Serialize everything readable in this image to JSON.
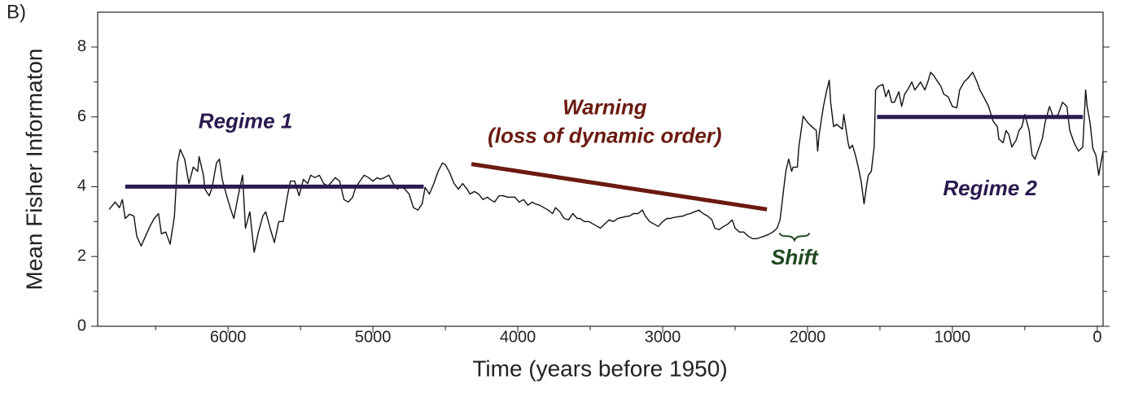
{
  "chart_data": {
    "type": "line",
    "panel_label": "B)",
    "xlabel": "Time (years before 1950)",
    "ylabel": "Mean Fisher Informaton",
    "xlim": [
      6900,
      -40
    ],
    "ylim": [
      0,
      9
    ],
    "xticks": [
      6000,
      5000,
      4000,
      3000,
      2000,
      1000,
      0
    ],
    "xminor": [
      6500,
      5500,
      4500,
      3500,
      2500,
      1500,
      500
    ],
    "yticks": [
      0,
      2,
      4,
      6,
      8
    ],
    "yminor": [
      1,
      3,
      5,
      7
    ],
    "series": [
      {
        "name": "Mean Fisher Information",
        "color": "#111111",
        "x": [
          6820,
          6780,
          6750,
          6730,
          6710,
          6680,
          6650,
          6630,
          6600,
          6570,
          6540,
          6510,
          6480,
          6460,
          6430,
          6400,
          6370,
          6350,
          6330,
          6300,
          6270,
          6240,
          6210,
          6200,
          6170,
          6160,
          6130,
          6110,
          6080,
          6060,
          6040,
          6010,
          5980,
          5960,
          5930,
          5900,
          5880,
          5850,
          5820,
          5790,
          5760,
          5740,
          5710,
          5680,
          5650,
          5620,
          5590,
          5570,
          5540,
          5510,
          5480,
          5450,
          5430,
          5400,
          5370,
          5340,
          5310,
          5280,
          5260,
          5230,
          5200,
          5170,
          5140,
          5120,
          5090,
          5060,
          5030,
          5000,
          4970,
          4950,
          4920,
          4890,
          4860,
          4830,
          4810,
          4780,
          4750,
          4720,
          4690,
          4660,
          4640,
          4610,
          4580,
          4550,
          4520,
          4500,
          4470,
          4440,
          4410,
          4380,
          4350,
          4330,
          4300,
          4270,
          4240,
          4210,
          4190,
          4160,
          4130,
          4100,
          4070,
          4050,
          4020,
          3990,
          3960,
          3930,
          3900,
          3880,
          3850,
          3820,
          3790,
          3760,
          3740,
          3710,
          3680,
          3650,
          3620,
          3590,
          3570,
          3540,
          3510,
          3480,
          3450,
          3430,
          3400,
          3370,
          3340,
          3310,
          3280,
          3260,
          3230,
          3200,
          3170,
          3140,
          3120,
          3090,
          3060,
          3030,
          3000,
          2970,
          2950,
          2920,
          2890,
          2860,
          2830,
          2810,
          2780,
          2750,
          2720,
          2690,
          2660,
          2640,
          2610,
          2580,
          2550,
          2520,
          2500,
          2470,
          2440,
          2410,
          2380,
          2350,
          2330,
          2300,
          2270,
          2240,
          2210,
          2190,
          2170,
          2150,
          2130,
          2110,
          2100,
          2070,
          2060,
          2030,
          2000,
          1970,
          1940,
          1930,
          1920,
          1890,
          1870,
          1850,
          1840,
          1820,
          1800,
          1780,
          1760,
          1750,
          1720,
          1710,
          1690,
          1670,
          1650,
          1630,
          1610,
          1590,
          1580,
          1560,
          1540,
          1530,
          1510,
          1480,
          1460,
          1440,
          1420,
          1400,
          1370,
          1350,
          1330,
          1310,
          1280,
          1260,
          1240,
          1220,
          1190,
          1170,
          1150,
          1130,
          1100,
          1080,
          1060,
          1030,
          1000,
          970,
          950,
          920,
          890,
          860,
          830,
          810,
          780,
          750,
          720,
          690,
          680,
          650,
          630,
          610,
          590,
          560,
          540,
          520,
          500,
          470,
          450,
          430,
          410,
          380,
          360,
          330,
          300,
          270,
          240,
          210,
          190,
          160,
          130,
          100,
          80,
          70,
          50,
          30,
          10,
          -10,
          -40
        ],
        "values": [
          3.35,
          3.56,
          3.4,
          3.63,
          3.09,
          3.21,
          3.16,
          2.58,
          2.3,
          2.58,
          2.86,
          3.09,
          3.23,
          2.65,
          2.7,
          2.35,
          3.16,
          4.68,
          5.07,
          4.79,
          4.09,
          4.56,
          4.44,
          4.86,
          4.33,
          3.93,
          3.74,
          3.98,
          4.68,
          4.79,
          4.21,
          3.74,
          3.33,
          3.09,
          3.74,
          4.33,
          2.81,
          3.28,
          2.12,
          2.7,
          3.16,
          3.28,
          2.81,
          2.4,
          3.0,
          3.0,
          3.74,
          4.16,
          4.16,
          3.74,
          4.21,
          4.09,
          4.33,
          4.26,
          4.33,
          4.09,
          4.02,
          4.16,
          4.26,
          4.16,
          3.63,
          3.56,
          3.7,
          3.98,
          4.16,
          4.33,
          4.26,
          4.16,
          4.26,
          4.21,
          4.26,
          4.33,
          4.09,
          3.93,
          4.02,
          3.93,
          3.79,
          3.4,
          3.33,
          3.51,
          3.98,
          3.79,
          4.09,
          4.44,
          4.68,
          4.63,
          4.4,
          4.09,
          3.93,
          4.09,
          3.93,
          3.79,
          3.86,
          3.79,
          3.63,
          3.7,
          3.63,
          3.56,
          3.74,
          3.74,
          3.7,
          3.7,
          3.7,
          3.56,
          3.63,
          3.47,
          3.56,
          3.51,
          3.47,
          3.4,
          3.33,
          3.23,
          3.4,
          3.28,
          3.09,
          3.05,
          3.23,
          3.09,
          3.09,
          3.0,
          3.0,
          2.93,
          2.86,
          2.81,
          2.93,
          3.05,
          3.0,
          3.09,
          3.12,
          3.14,
          3.16,
          3.23,
          3.23,
          3.33,
          3.16,
          3.0,
          2.93,
          2.86,
          3.0,
          3.09,
          3.09,
          3.12,
          3.14,
          3.16,
          3.21,
          3.23,
          3.28,
          3.33,
          3.23,
          3.16,
          3.05,
          2.81,
          2.77,
          2.86,
          2.93,
          3.05,
          2.81,
          2.7,
          2.7,
          2.58,
          2.51,
          2.51,
          2.54,
          2.58,
          2.63,
          2.7,
          2.81,
          3.05,
          3.74,
          4.44,
          4.79,
          4.44,
          4.56,
          4.56,
          5.14,
          6.02,
          5.84,
          5.72,
          5.61,
          5.02,
          5.49,
          6.3,
          6.72,
          7.05,
          6.42,
          5.72,
          5.79,
          5.72,
          5.65,
          6.07,
          5.26,
          5.09,
          5.19,
          4.91,
          4.56,
          4.16,
          3.51,
          4.09,
          4.33,
          4.44,
          5.14,
          6.77,
          6.88,
          6.93,
          6.58,
          6.77,
          6.42,
          6.42,
          6.72,
          6.3,
          6.65,
          6.77,
          7.0,
          6.77,
          6.88,
          7.0,
          6.77,
          7.0,
          7.28,
          7.19,
          7.0,
          6.88,
          6.65,
          6.58,
          6.3,
          6.26,
          6.77,
          7.0,
          7.12,
          7.28,
          7.0,
          6.77,
          6.54,
          6.3,
          5.88,
          5.72,
          5.37,
          5.26,
          5.61,
          5.49,
          5.14,
          5.33,
          5.61,
          5.72,
          6.07,
          5.61,
          4.91,
          4.79,
          5.02,
          5.37,
          5.84,
          6.3,
          5.95,
          6.07,
          6.42,
          6.3,
          5.61,
          5.26,
          5.02,
          5.14,
          6.77,
          6.3,
          5.84,
          5.09,
          4.91,
          4.33,
          5.02
        ]
      }
    ],
    "segments": [
      {
        "color": "#2a1a50",
        "x": [
          6710,
          4650
        ],
        "values": [
          4,
          4
        ]
      },
      {
        "color": "#6b1a10",
        "x": [
          4320,
          2280
        ],
        "values": [
          4.65,
          3.35
        ]
      },
      {
        "color": "#2a1a50",
        "x": [
          1520,
          100
        ],
        "values": [
          6,
          6
        ]
      }
    ],
    "annotations": [
      {
        "text": "Regime 1",
        "x": 5880,
        "y": 5.84,
        "color": "#2a1a50"
      },
      {
        "text": "Warning",
        "x": 3400,
        "y": 6.23,
        "color": "#6b1a10"
      },
      {
        "text": "(loss of dynamic order)",
        "x": 3400,
        "y": 5.42,
        "color": "#6b1a10"
      },
      {
        "text": "Shift",
        "x": 2090,
        "y": 1.93,
        "color": "#1f4a1f"
      },
      {
        "text": "Regime 2",
        "x": 740,
        "y": 3.91,
        "color": "#2a1a50"
      }
    ]
  }
}
